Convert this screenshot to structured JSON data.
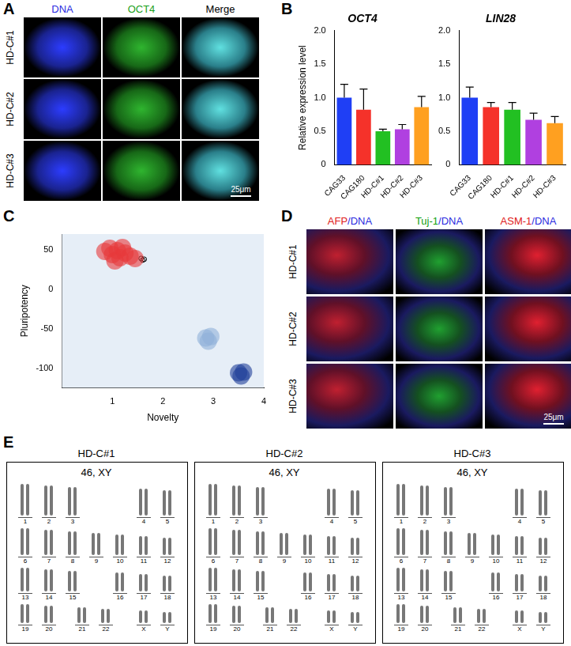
{
  "figure": {
    "panel_labels": [
      "A",
      "B",
      "C",
      "D",
      "E"
    ],
    "A": {
      "columns": [
        {
          "text": "DNA",
          "color": "#2a2ae0"
        },
        {
          "text": "OCT4",
          "color": "#1aa01a"
        },
        {
          "text": "Merge",
          "color": "#000000"
        }
      ],
      "rows": [
        "HD-C#1",
        "HD-C#2",
        "HD-C#3"
      ],
      "scale_bar": "25μm"
    },
    "D": {
      "columns": [
        {
          "text": "AFP/DNA",
          "color": "#e02020"
        },
        {
          "text": "Tuj-1/DNA",
          "color": "#10a010"
        },
        {
          "text": "ASM-1/DNA",
          "color": "#e02020"
        }
      ],
      "rows": [
        "HD-C#1",
        "HD-C#2",
        "HD-C#3"
      ],
      "scale_bar": "25μm"
    },
    "E": {
      "karyotypes": [
        {
          "title": "HD-C#1",
          "karyotype": "46, XY"
        },
        {
          "title": "HD-C#2",
          "karyotype": "46, XY"
        },
        {
          "title": "HD-C#3",
          "karyotype": "46, XY"
        }
      ],
      "chromosomes": [
        [
          "1",
          "2",
          "3",
          "4",
          "5"
        ],
        [
          "6",
          "7",
          "8",
          "9",
          "10",
          "11",
          "12"
        ],
        [
          "13",
          "14",
          "15",
          "16",
          "17",
          "18"
        ],
        [
          "19",
          "20",
          "21",
          "22",
          "X",
          "Y"
        ]
      ]
    }
  },
  "chart_data": [
    {
      "type": "bar",
      "title": "OCT4",
      "y_label": "Relative expression level",
      "categories": [
        "CAG33",
        "CAG180",
        "HD-C#1",
        "HD-C#2",
        "HD-C#3"
      ],
      "values": [
        1.0,
        0.82,
        0.5,
        0.53,
        0.86
      ],
      "errors": [
        0.2,
        0.31,
        0.03,
        0.07,
        0.16
      ],
      "colors": [
        "#1f3ff5",
        "#f5322a",
        "#22c022",
        "#b040e0",
        "#ffa020"
      ],
      "ylim": [
        0,
        2
      ],
      "yticks": [
        0,
        0.5,
        {
          "value": 1,
          "label": "1.0"
        },
        1.5,
        {
          "value": 2,
          "label": "2.0"
        }
      ],
      "grid": false
    },
    {
      "type": "bar",
      "title": "LIN28",
      "categories": [
        "CAG33",
        "CAG180",
        "HD-C#1",
        "HD-C#2",
        "HD-C#3"
      ],
      "values": [
        1.0,
        0.86,
        0.82,
        0.67,
        0.62
      ],
      "errors": [
        0.16,
        0.07,
        0.11,
        0.1,
        0.1
      ],
      "colors": [
        "#1f3ff5",
        "#f5322a",
        "#22c022",
        "#b040e0",
        "#ffa020"
      ],
      "ylim": [
        0,
        2
      ],
      "yticks": [
        0,
        0.5,
        {
          "value": 1,
          "label": "1.0"
        },
        1.5,
        {
          "value": 2,
          "label": "2.0"
        }
      ],
      "grid": false
    },
    {
      "type": "scatter",
      "x_label": "Novelty",
      "y_label": "Pluripotency",
      "xlim": [
        0,
        4
      ],
      "xticks": [
        1,
        2,
        3,
        4
      ],
      "ylim": [
        -125,
        70
      ],
      "yticks": [
        -100,
        -50,
        0,
        50
      ],
      "grid": false,
      "series": [
        {
          "color": "#e8383a",
          "marker": "blob",
          "points": [
            [
              0.85,
              48
            ],
            [
              0.95,
              52
            ],
            [
              1.0,
              44
            ],
            [
              1.1,
              49
            ],
            [
              1.15,
              40
            ],
            [
              1.25,
              46
            ],
            [
              1.35,
              42
            ],
            [
              1.45,
              39
            ],
            [
              1.05,
              36
            ],
            [
              1.2,
              53
            ]
          ]
        },
        {
          "color": "#8fb0d8",
          "marker": "blob",
          "points": [
            [
              2.85,
              -62
            ],
            [
              2.9,
              -66
            ],
            [
              2.95,
              -60
            ]
          ]
        },
        {
          "color": "#1f3f9a",
          "marker": "blob",
          "points": [
            [
              3.5,
              -106
            ],
            [
              3.55,
              -110
            ],
            [
              3.6,
              -105
            ]
          ]
        },
        {
          "color": "#000000",
          "marker": "open_circle",
          "points": [
            [
              1.57,
              39
            ],
            [
              1.6,
              37
            ],
            [
              1.63,
              38
            ]
          ]
        }
      ]
    }
  ]
}
